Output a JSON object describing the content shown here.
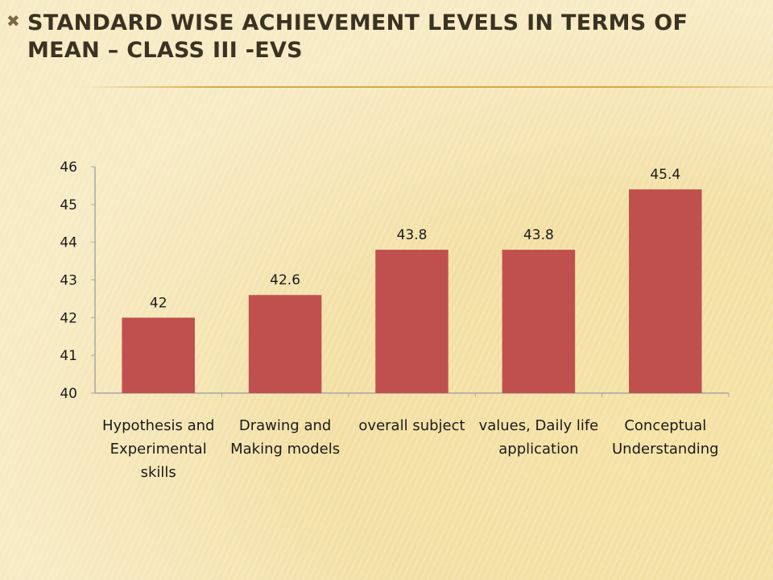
{
  "slide": {
    "bullet": "✖",
    "title": "Standard wise achievement levels in terms of mean – Class III -EVS"
  },
  "colors": {
    "bar": "#c0504d",
    "axis": "#a6a6a6"
  },
  "chart_data": {
    "type": "bar",
    "categories": [
      "Hypothesis and Experimental skills",
      "Drawing and Making models",
      "overall subject",
      "values, Daily life application",
      "Conceptual Understanding"
    ],
    "category_lines": [
      [
        "Hypothesis and",
        "Experimental",
        "skills"
      ],
      [
        "Drawing and",
        "Making models"
      ],
      [
        "overall subject"
      ],
      [
        "values, Daily life",
        "application"
      ],
      [
        "Conceptual",
        "Understanding"
      ]
    ],
    "values": [
      42,
      42.6,
      43.8,
      43.8,
      45.4
    ],
    "data_labels": [
      "42",
      "42.6",
      "43.8",
      "43.8",
      "45.4"
    ],
    "ylim": [
      40,
      46
    ],
    "yticks": [
      40,
      41,
      42,
      43,
      44,
      45,
      46
    ],
    "title": "",
    "xlabel": "",
    "ylabel": "",
    "grid": false,
    "legend": "none"
  }
}
